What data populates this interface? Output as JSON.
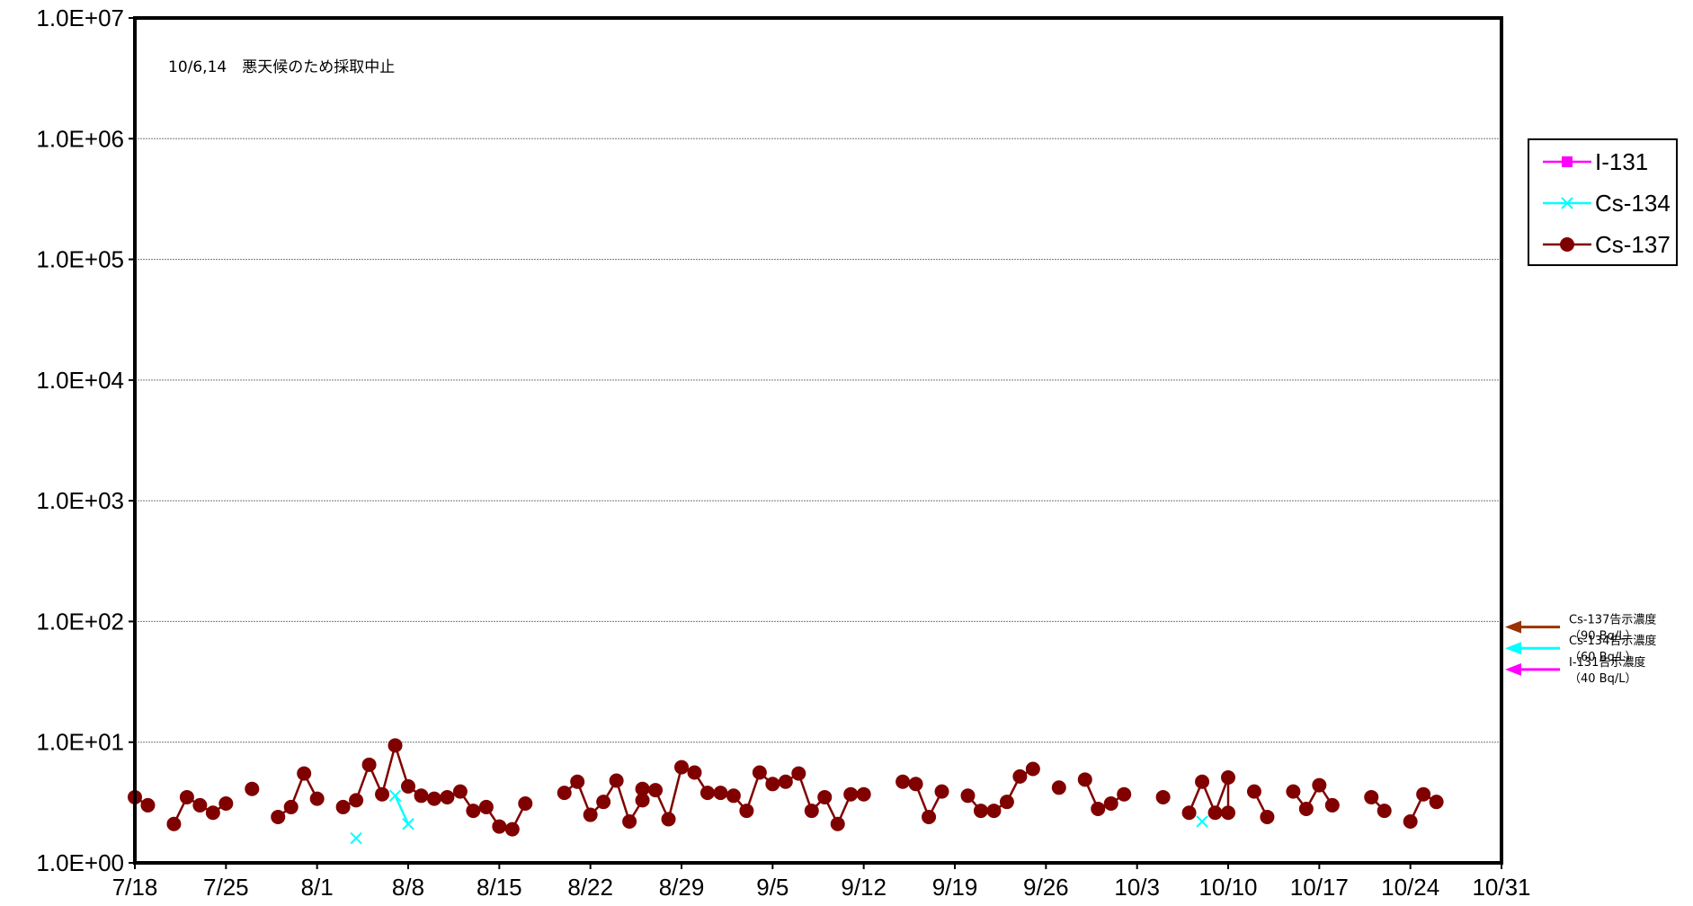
{
  "chart_data": {
    "type": "line",
    "title": "",
    "xlabel": "",
    "ylabel": "",
    "yscale": "log",
    "ylim": [
      1,
      10000000
    ],
    "xlim": [
      "7/18",
      "10/31"
    ],
    "grid": true,
    "legend_position": "right",
    "y_ticks": [
      "1.0E+00",
      "1.0E+01",
      "1.0E+02",
      "1.0E+03",
      "1.0E+04",
      "1.0E+05",
      "1.0E+06",
      "1.0E+07"
    ],
    "x_ticks": [
      "7/18",
      "7/25",
      "8/1",
      "8/8",
      "8/15",
      "8/22",
      "8/29",
      "9/5",
      "9/12",
      "9/19",
      "9/26",
      "10/3",
      "10/10",
      "10/17",
      "10/24",
      "10/31"
    ],
    "annotation": "10/6,14　悪天候のため採取中止",
    "series": [
      {
        "name": "I-131",
        "color": "#ff00ff",
        "marker": "square",
        "points": []
      },
      {
        "name": "Cs-134",
        "color": "#00ffff",
        "marker": "x",
        "points": [
          {
            "x": "8/4",
            "y": 1.6
          },
          {
            "x": "8/7",
            "y": 3.6
          },
          {
            "x": "8/8",
            "y": 2.1
          },
          {
            "x": "10/8",
            "y": 2.2
          }
        ]
      },
      {
        "name": "Cs-137",
        "color": "#800000",
        "marker": "circle",
        "points": [
          {
            "x": "7/18",
            "y": 3.5
          },
          {
            "x": "7/19",
            "y": 3.0
          },
          {
            "x": "7/21",
            "y": 2.1
          },
          {
            "x": "7/22",
            "y": 3.5
          },
          {
            "x": "7/23",
            "y": 3.0
          },
          {
            "x": "7/24",
            "y": 2.6
          },
          {
            "x": "7/25",
            "y": 3.1
          },
          {
            "x": "7/27",
            "y": 4.1
          },
          {
            "x": "7/29",
            "y": 2.4
          },
          {
            "x": "7/30",
            "y": 2.9
          },
          {
            "x": "7/31",
            "y": 5.5
          },
          {
            "x": "8/1",
            "y": 3.4
          },
          {
            "x": "8/3",
            "y": 2.9
          },
          {
            "x": "8/4",
            "y": 3.3
          },
          {
            "x": "8/5",
            "y": 6.5
          },
          {
            "x": "8/6",
            "y": 3.7
          },
          {
            "x": "8/7",
            "y": 9.4
          },
          {
            "x": "8/8",
            "y": 4.3
          },
          {
            "x": "8/9",
            "y": 3.6
          },
          {
            "x": "8/10",
            "y": 3.4
          },
          {
            "x": "8/11",
            "y": 3.5
          },
          {
            "x": "8/12",
            "y": 3.9
          },
          {
            "x": "8/13",
            "y": 2.7
          },
          {
            "x": "8/14",
            "y": 2.9
          },
          {
            "x": "8/15",
            "y": 2.0
          },
          {
            "x": "8/16",
            "y": 1.9
          },
          {
            "x": "8/17",
            "y": 3.1
          },
          {
            "x": "8/20",
            "y": 3.8
          },
          {
            "x": "8/21",
            "y": 4.7
          },
          {
            "x": "8/22",
            "y": 2.5
          },
          {
            "x": "8/23",
            "y": 3.2
          },
          {
            "x": "8/24",
            "y": 4.8
          },
          {
            "x": "8/25",
            "y": 2.2
          },
          {
            "x": "8/26",
            "y": 3.3
          },
          {
            "x": "8/26",
            "y": 4.1
          },
          {
            "x": "8/27",
            "y": 4.0
          },
          {
            "x": "8/28",
            "y": 2.3
          },
          {
            "x": "8/29",
            "y": 6.2
          },
          {
            "x": "8/30",
            "y": 5.6
          },
          {
            "x": "8/31",
            "y": 3.8
          },
          {
            "x": "9/1",
            "y": 3.8
          },
          {
            "x": "9/2",
            "y": 3.6
          },
          {
            "x": "9/3",
            "y": 2.7
          },
          {
            "x": "9/4",
            "y": 5.6
          },
          {
            "x": "9/5",
            "y": 4.5
          },
          {
            "x": "9/6",
            "y": 4.7
          },
          {
            "x": "9/7",
            "y": 5.5
          },
          {
            "x": "9/8",
            "y": 2.7
          },
          {
            "x": "9/9",
            "y": 3.5
          },
          {
            "x": "9/10",
            "y": 2.1
          },
          {
            "x": "9/11",
            "y": 3.7
          },
          {
            "x": "9/12",
            "y": 3.7
          },
          {
            "x": "9/15",
            "y": 4.7
          },
          {
            "x": "9/16",
            "y": 4.5
          },
          {
            "x": "9/17",
            "y": 2.4
          },
          {
            "x": "9/18",
            "y": 3.9
          },
          {
            "x": "9/20",
            "y": 3.6
          },
          {
            "x": "9/21",
            "y": 2.7
          },
          {
            "x": "9/22",
            "y": 2.7
          },
          {
            "x": "9/23",
            "y": 3.2
          },
          {
            "x": "9/24",
            "y": 5.2
          },
          {
            "x": "9/25",
            "y": 6.0
          },
          {
            "x": "9/27",
            "y": 4.2
          },
          {
            "x": "9/29",
            "y": 4.9
          },
          {
            "x": "9/30",
            "y": 2.8
          },
          {
            "x": "10/1",
            "y": 3.1
          },
          {
            "x": "10/2",
            "y": 3.7
          },
          {
            "x": "10/5",
            "y": 3.5
          },
          {
            "x": "10/7",
            "y": 2.6
          },
          {
            "x": "10/8",
            "y": 4.7
          },
          {
            "x": "10/9",
            "y": 2.6
          },
          {
            "x": "10/10",
            "y": 5.1
          },
          {
            "x": "10/10",
            "y": 2.6
          },
          {
            "x": "10/12",
            "y": 3.9
          },
          {
            "x": "10/13",
            "y": 2.4
          },
          {
            "x": "10/15",
            "y": 3.9
          },
          {
            "x": "10/16",
            "y": 2.8
          },
          {
            "x": "10/17",
            "y": 4.4
          },
          {
            "x": "10/18",
            "y": 3.0
          },
          {
            "x": "10/21",
            "y": 3.5
          },
          {
            "x": "10/22",
            "y": 2.7
          },
          {
            "x": "10/24",
            "y": 2.2
          },
          {
            "x": "10/25",
            "y": 3.7
          },
          {
            "x": "10/26",
            "y": 3.2
          }
        ]
      }
    ],
    "reference_lines": [
      {
        "label_line1": "Cs-137告示濃度",
        "label_line2": "（90  Bq/L）",
        "value": 90,
        "color": "#993300"
      },
      {
        "label_line1": "Cs-134告示濃度",
        "label_line2": "（60  Bq/L）",
        "value": 60,
        "color": "#00ffff"
      },
      {
        "label_line1": "I-131告示濃度",
        "label_line2": "（40  Bq/L）",
        "value": 40,
        "color": "#ff00ff"
      }
    ]
  }
}
